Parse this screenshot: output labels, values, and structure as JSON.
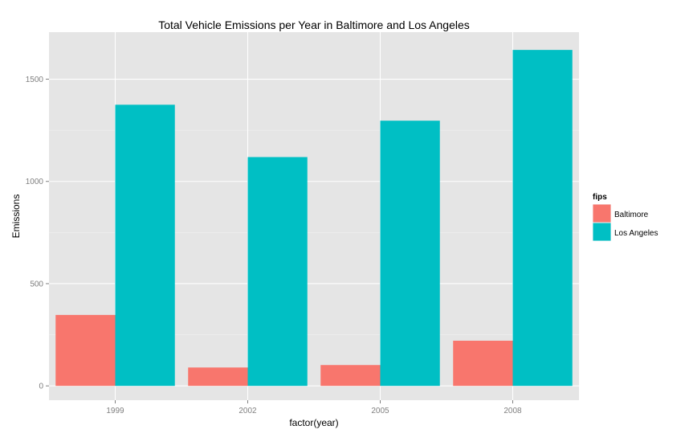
{
  "chart_data": {
    "type": "bar",
    "title": "Total Vehicle Emissions per Year in Baltimore and Los Angeles",
    "xlabel": "factor(year)",
    "ylabel": "Emissions",
    "categories": [
      "1999",
      "2002",
      "2005",
      "2008"
    ],
    "series": [
      {
        "name": "Baltimore",
        "color": "#F8766D",
        "values": [
          347,
          90,
          102,
          221
        ]
      },
      {
        "name": "Los Angeles",
        "color": "#00BFC4",
        "values": [
          1375,
          1119,
          1297,
          1643
        ]
      }
    ],
    "ylim": [
      -70,
      1730
    ],
    "yticks": [
      0,
      500,
      1000,
      1500
    ],
    "yticks_labels": [
      "0",
      "500",
      "1000",
      "1500"
    ],
    "grid": true,
    "panel_background": "#E5E5E5",
    "legend": {
      "title": "fips",
      "position": "right"
    }
  }
}
